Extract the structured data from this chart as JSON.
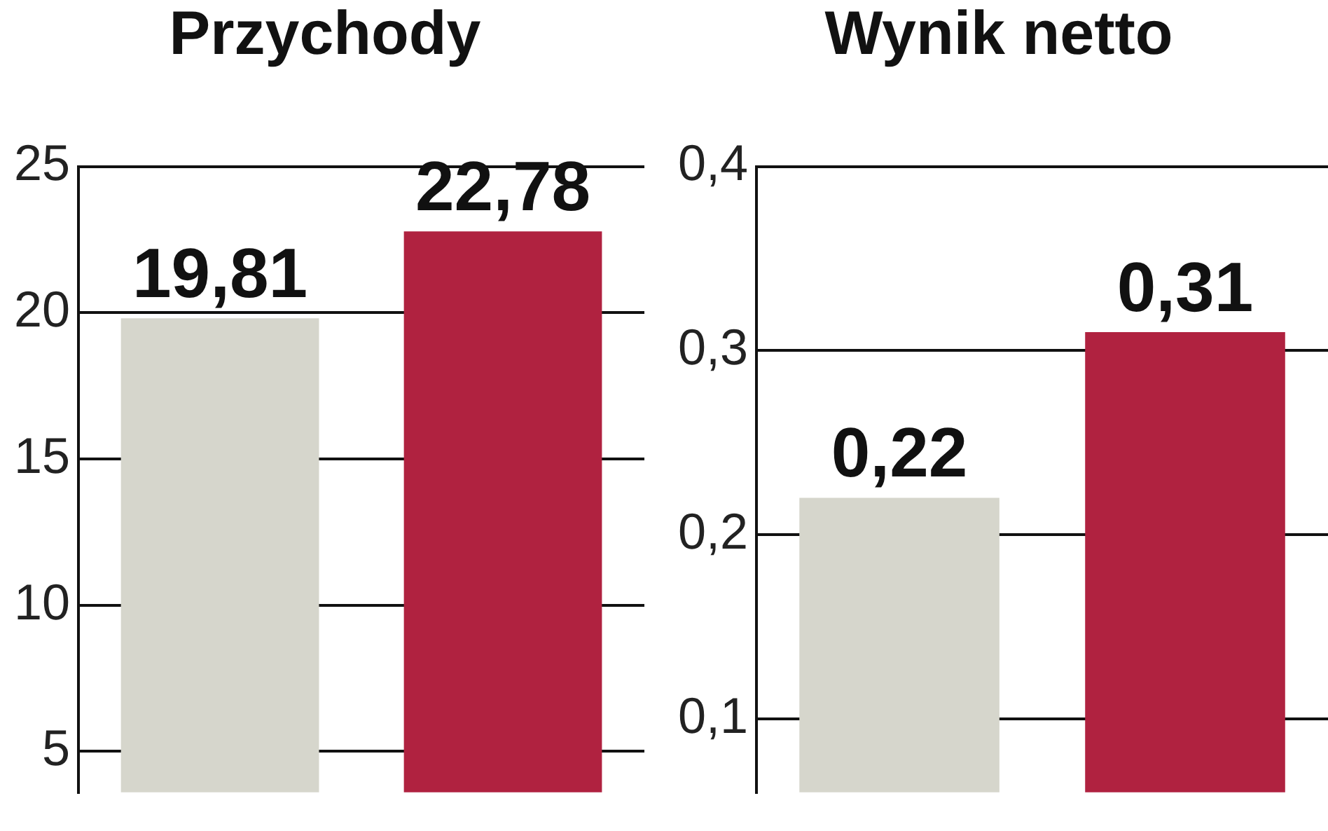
{
  "chart_data": [
    {
      "type": "bar",
      "title": "Przychody",
      "categories": [
        null,
        null
      ],
      "values": [
        19.81,
        22.78
      ],
      "colors": [
        "#d6d6cc",
        "#b02240"
      ],
      "value_labels": [
        "19,81",
        "22,78"
      ],
      "ylim": [
        3.6,
        25
      ],
      "yticks": [
        5,
        10,
        15,
        20,
        25
      ],
      "grid": "y"
    },
    {
      "type": "bar",
      "title": "Wynik netto",
      "categories": [
        null,
        null
      ],
      "values": [
        0.22,
        0.31
      ],
      "colors": [
        "#d6d6cc",
        "#b02240"
      ],
      "value_labels": [
        "0,22",
        "0,31"
      ],
      "ylim": [
        0.06,
        0.4
      ],
      "yticks": [
        {
          "value": 0.1,
          "label": "0,1"
        },
        {
          "value": 0.2,
          "label": "0,2"
        },
        {
          "value": 0.3,
          "label": "0,3"
        },
        {
          "value": 0.4,
          "label": "0,4"
        }
      ],
      "grid": "y"
    }
  ]
}
